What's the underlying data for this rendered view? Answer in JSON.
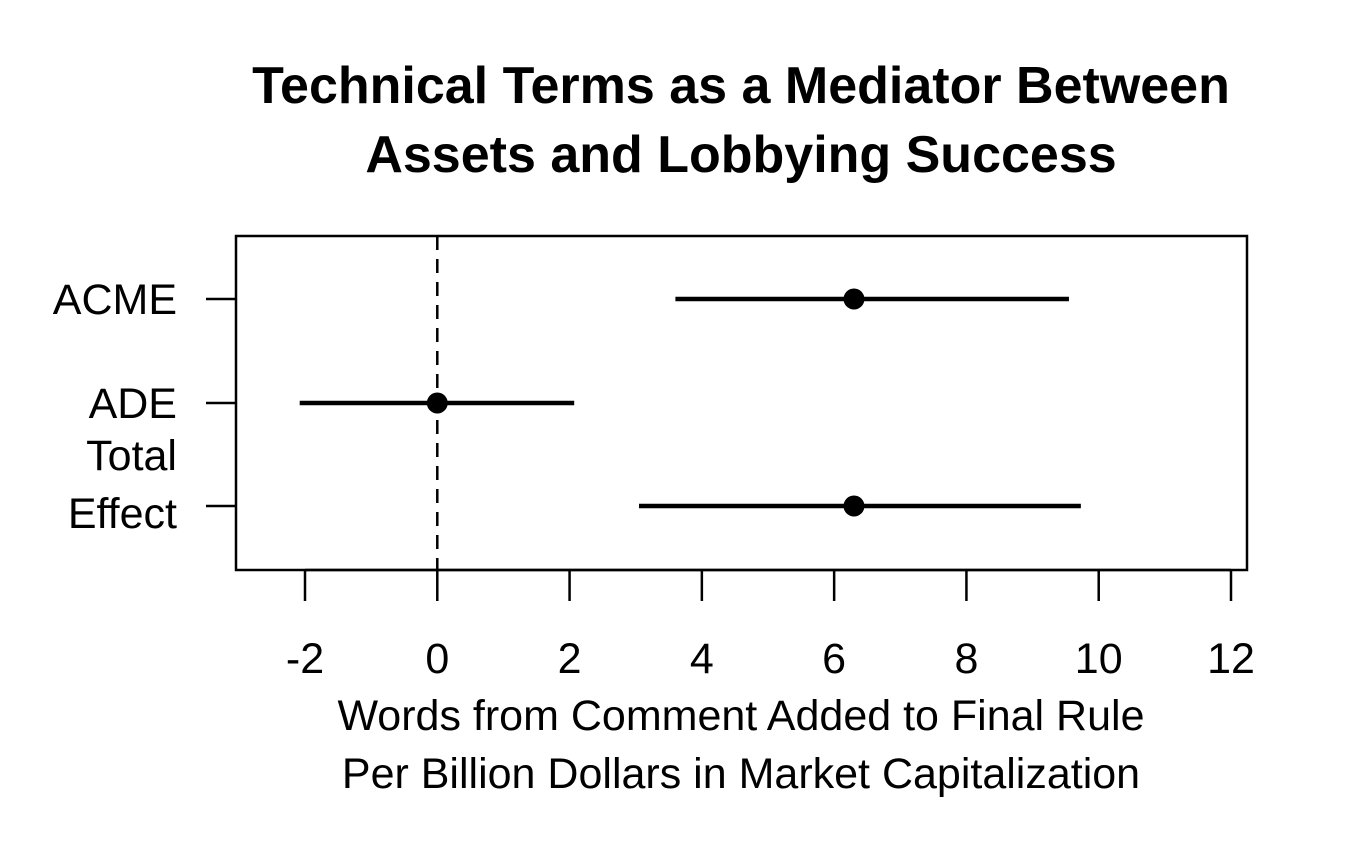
{
  "chart_data": {
    "type": "scatter",
    "subtype": "coefficient-plot",
    "title": [
      "Technical Terms as a Mediator Between",
      "Assets and Lobbying Success"
    ],
    "xlabel": [
      "Words from Comment Added to Final Rule",
      "Per Billion Dollars in Market Capitalization"
    ],
    "ylabel": "",
    "xlim": [
      -3.0,
      12.3
    ],
    "xticks": [
      -2,
      0,
      2,
      4,
      6,
      8,
      10,
      12
    ],
    "xtick_labels": [
      "-2",
      "0",
      "2",
      "4",
      "6",
      "8",
      "10",
      "12"
    ],
    "reference_line": {
      "x": 0,
      "style": "dashed"
    },
    "grid": false,
    "legend": "none",
    "colors": {
      "points": "#000000",
      "lines": "#000000"
    },
    "rows": [
      {
        "label": [
          "ACME"
        ],
        "estimate": 6.3,
        "lower": 3.6,
        "upper": 9.55
      },
      {
        "label": [
          "ADE"
        ],
        "estimate": 0.0,
        "lower": -2.08,
        "upper": 2.07
      },
      {
        "label": [
          "Total",
          "Effect"
        ],
        "estimate": 6.3,
        "lower": 3.05,
        "upper": 9.73
      }
    ]
  }
}
